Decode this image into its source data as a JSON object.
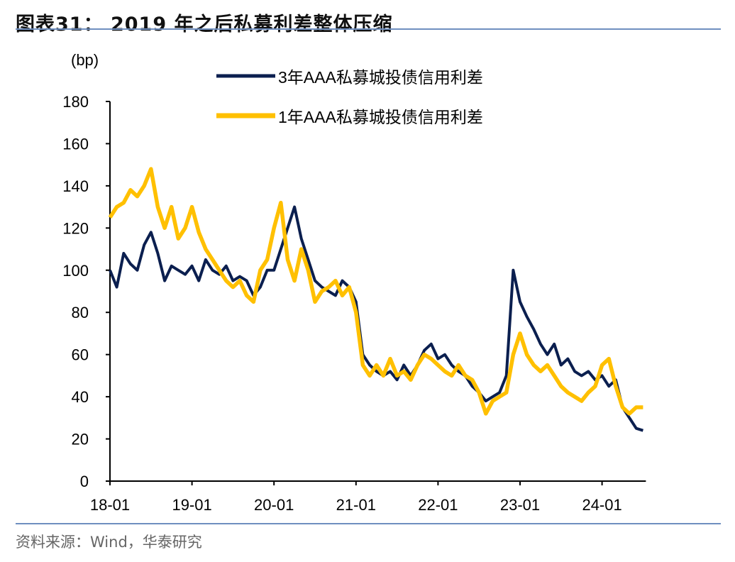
{
  "title": "图表31： 2019 年之后私募利差整体压缩",
  "source": "资料来源：Wind，华泰研究",
  "chart_data": {
    "type": "line",
    "title": "",
    "ylabel": "(bp)",
    "xlabel": "",
    "ylim": [
      0,
      180
    ],
    "yticks": [
      0,
      20,
      40,
      60,
      80,
      100,
      120,
      140,
      160,
      180
    ],
    "xticks": [
      "18-01",
      "19-01",
      "20-01",
      "21-01",
      "22-01",
      "23-01",
      "24-01"
    ],
    "xrange": [
      "2018-01",
      "2024-07"
    ],
    "grid": false,
    "legend": "top-center",
    "colors": {
      "series_3y": "#0b1f4f",
      "series_1y": "#ffc000",
      "rule": "#6f8fc0"
    },
    "x": [
      "2018-01",
      "2018-02",
      "2018-03",
      "2018-04",
      "2018-05",
      "2018-06",
      "2018-07",
      "2018-08",
      "2018-09",
      "2018-10",
      "2018-11",
      "2018-12",
      "2019-01",
      "2019-02",
      "2019-03",
      "2019-04",
      "2019-05",
      "2019-06",
      "2019-07",
      "2019-08",
      "2019-09",
      "2019-10",
      "2019-11",
      "2019-12",
      "2020-01",
      "2020-02",
      "2020-03",
      "2020-04",
      "2020-05",
      "2020-06",
      "2020-07",
      "2020-08",
      "2020-09",
      "2020-10",
      "2020-11",
      "2020-12",
      "2021-01",
      "2021-02",
      "2021-03",
      "2021-04",
      "2021-05",
      "2021-06",
      "2021-07",
      "2021-08",
      "2021-09",
      "2021-10",
      "2021-11",
      "2021-12",
      "2022-01",
      "2022-02",
      "2022-03",
      "2022-04",
      "2022-05",
      "2022-06",
      "2022-07",
      "2022-08",
      "2022-09",
      "2022-10",
      "2022-11",
      "2022-12",
      "2023-01",
      "2023-02",
      "2023-03",
      "2023-04",
      "2023-05",
      "2023-06",
      "2023-07",
      "2023-08",
      "2023-09",
      "2023-10",
      "2023-11",
      "2023-12",
      "2024-01",
      "2024-02",
      "2024-03",
      "2024-04",
      "2024-05",
      "2024-06",
      "2024-07"
    ],
    "series": [
      {
        "name": "3年AAA私募城投债信用利差",
        "values": [
          100,
          92,
          108,
          103,
          100,
          112,
          118,
          108,
          95,
          102,
          100,
          98,
          102,
          95,
          105,
          100,
          98,
          102,
          95,
          97,
          95,
          88,
          92,
          100,
          100,
          110,
          120,
          130,
          115,
          105,
          95,
          92,
          90,
          88,
          95,
          92,
          85,
          60,
          55,
          52,
          50,
          52,
          48,
          55,
          50,
          55,
          62,
          65,
          58,
          60,
          55,
          52,
          50,
          45,
          42,
          38,
          40,
          42,
          50,
          100,
          85,
          78,
          72,
          65,
          60,
          65,
          55,
          58,
          52,
          50,
          52,
          48,
          50,
          45,
          48,
          35,
          30,
          25,
          24
        ]
      },
      {
        "name": "1年AAA私募城投债信用利差",
        "values": [
          125,
          130,
          132,
          138,
          135,
          140,
          148,
          130,
          120,
          130,
          115,
          120,
          130,
          118,
          110,
          105,
          100,
          95,
          92,
          95,
          88,
          85,
          100,
          105,
          120,
          132,
          105,
          95,
          110,
          100,
          85,
          90,
          92,
          95,
          88,
          92,
          80,
          55,
          50,
          55,
          50,
          58,
          50,
          52,
          48,
          55,
          60,
          58,
          55,
          52,
          50,
          55,
          50,
          48,
          42,
          32,
          38,
          40,
          42,
          60,
          70,
          60,
          55,
          52,
          55,
          50,
          45,
          42,
          40,
          38,
          42,
          45,
          55,
          58,
          45,
          35,
          32,
          35,
          35
        ]
      }
    ]
  }
}
